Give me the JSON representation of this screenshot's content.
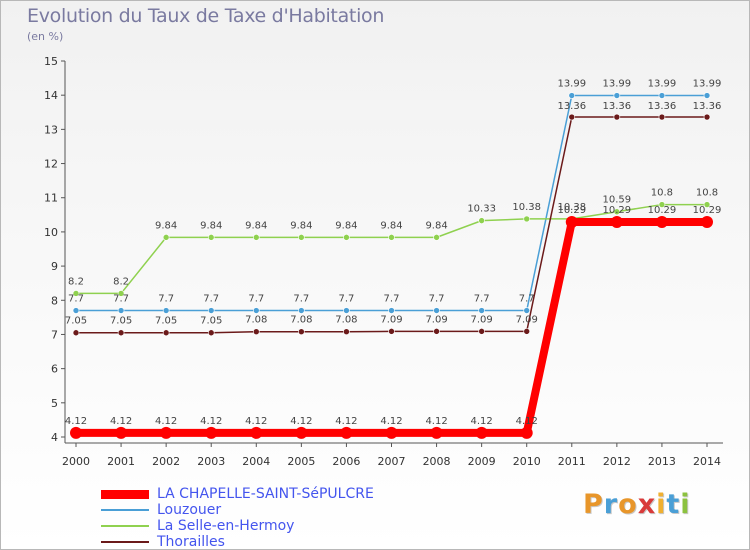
{
  "header": {
    "title": "Evolution du Taux de Taxe d'Habitation",
    "unit": "(en %)"
  },
  "logo": {
    "text": "Proxiti",
    "letters": [
      "P",
      "r",
      "o",
      "x",
      "i",
      "t",
      "i"
    ],
    "colors": [
      "#e8962a",
      "#4a9fd6",
      "#e8962a",
      "#d93a3a",
      "#f0b030",
      "#4a9fd6",
      "#8cc23f"
    ]
  },
  "chart_data": {
    "type": "line",
    "title": "Evolution du Taux de Taxe d'Habitation",
    "ylabel": "(en %)",
    "xlabel": "",
    "x": [
      "2000",
      "2001",
      "2002",
      "2003",
      "2004",
      "2005",
      "2006",
      "2007",
      "2008",
      "2009",
      "2010",
      "2011",
      "2012",
      "2013",
      "2014"
    ],
    "ylim": [
      4,
      15
    ],
    "yticks": [
      "4",
      "5",
      "6",
      "7",
      "8",
      "9",
      "10",
      "11",
      "12",
      "13",
      "14",
      "15"
    ],
    "grid": false,
    "legend_position": "bottom-left",
    "series": [
      {
        "name": "LA CHAPELLE-SAINT-SéPULCRE",
        "color": "#ff0000",
        "values": [
          4.12,
          4.12,
          4.12,
          4.12,
          4.12,
          4.12,
          4.12,
          4.12,
          4.12,
          4.12,
          4.12,
          10.29,
          10.29,
          10.29,
          10.29
        ],
        "labels": [
          "4.12",
          "4.12",
          "4.12",
          "4.12",
          "4.12",
          "4.12",
          "4.12",
          "4.12",
          "4.12",
          "4.12",
          "4.12",
          "10.29",
          "10.29",
          "10.29",
          "10.29"
        ]
      },
      {
        "name": "Louzouer",
        "color": "#4a9fd6",
        "values": [
          7.7,
          7.7,
          7.7,
          7.7,
          7.7,
          7.7,
          7.7,
          7.7,
          7.7,
          7.7,
          7.7,
          13.99,
          13.99,
          13.99,
          13.99
        ],
        "labels": [
          "7.7",
          "7.7",
          "7.7",
          "7.7",
          "7.7",
          "7.7",
          "7.7",
          "7.7",
          "7.7",
          "7.7",
          "7.7",
          "13.99",
          "13.99",
          "13.99",
          "13.99"
        ]
      },
      {
        "name": "La Selle-en-Hermoy",
        "color": "#8fd14f",
        "values": [
          8.2,
          8.2,
          9.84,
          9.84,
          9.84,
          9.84,
          9.84,
          9.84,
          9.84,
          10.33,
          10.38,
          10.38,
          10.59,
          10.8,
          10.8
        ],
        "labels": [
          "8.2",
          "8.2",
          "9.84",
          "9.84",
          "9.84",
          "9.84",
          "9.84",
          "9.84",
          "9.84",
          "10.33",
          "10.38",
          "10.38",
          "10.59",
          "10.8",
          "10.8"
        ]
      },
      {
        "name": "Thorailles",
        "color": "#6b1a1a",
        "values": [
          7.05,
          7.05,
          7.05,
          7.05,
          7.08,
          7.08,
          7.08,
          7.09,
          7.09,
          7.09,
          7.09,
          13.36,
          13.36,
          13.36,
          13.36
        ],
        "labels": [
          "7.05",
          "7.05",
          "7.05",
          "7.05",
          "7.08",
          "7.08",
          "7.08",
          "7.09",
          "7.09",
          "7.09",
          "7.09",
          "13.36",
          "13.36",
          "13.36",
          "13.36"
        ]
      }
    ]
  }
}
